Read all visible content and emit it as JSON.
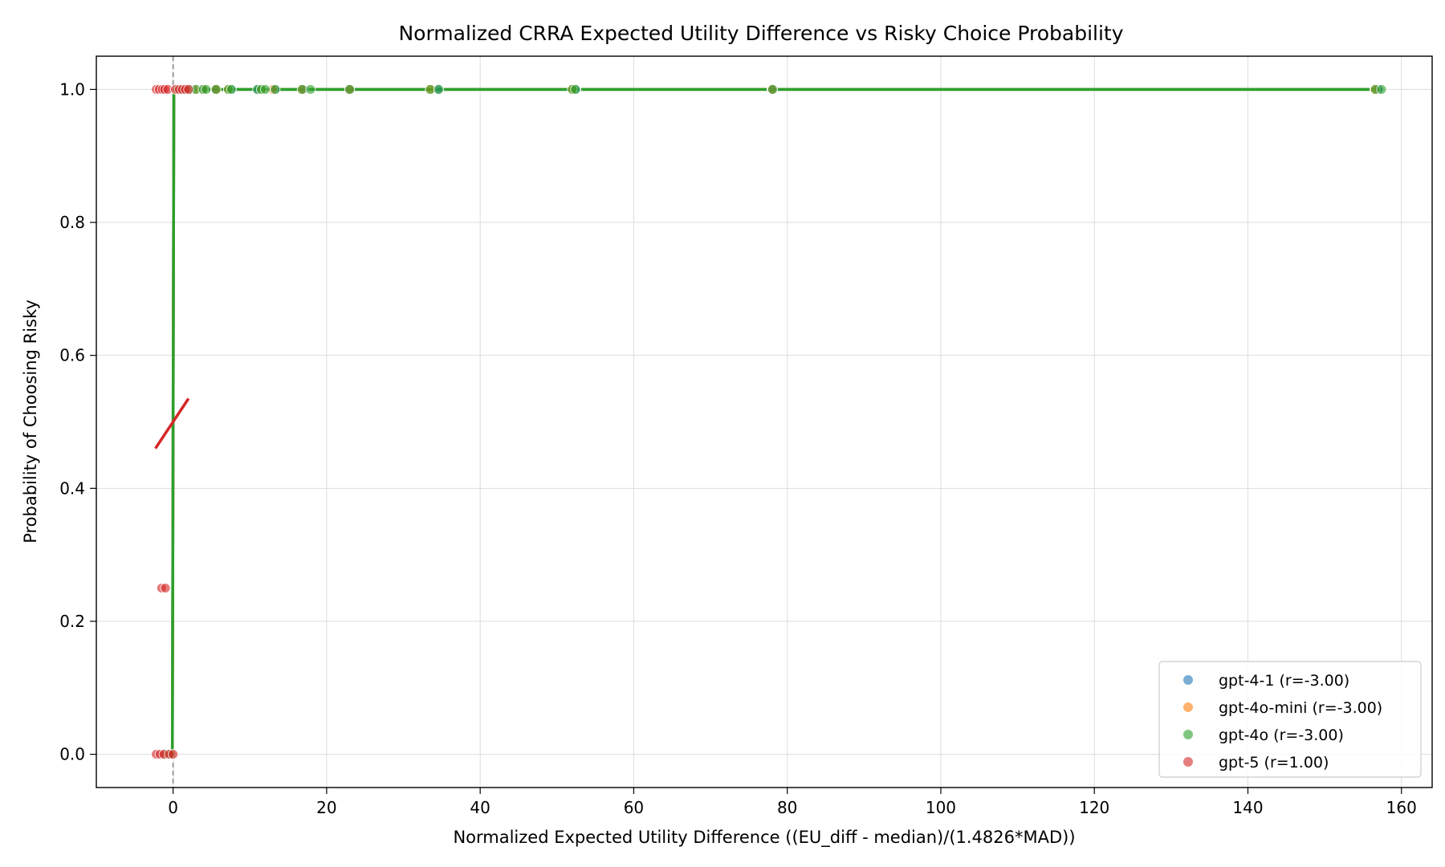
{
  "chart_data": {
    "type": "scatter",
    "title": "Normalized CRRA Expected Utility Difference vs Risky Choice Probability",
    "xlabel": "Normalized Expected Utility Difference ((EU_diff - median)/(1.4826*MAD))",
    "ylabel": "Probability of Choosing Risky",
    "xlim": [
      -10,
      164
    ],
    "ylim": [
      -0.05,
      1.05
    ],
    "xticks": [
      0,
      20,
      40,
      60,
      80,
      100,
      120,
      140,
      160
    ],
    "xtick_labels": [
      "0",
      "20",
      "40",
      "60",
      "80",
      "100",
      "120",
      "140",
      "160"
    ],
    "yticks": [
      0.0,
      0.2,
      0.4,
      0.6,
      0.8,
      1.0
    ],
    "ytick_labels": [
      "0.0",
      "0.2",
      "0.4",
      "0.6",
      "0.8",
      "1.0"
    ],
    "grid": true,
    "legend_position": "bottom-right",
    "reference_line": {
      "x": 0,
      "style": "dashed",
      "color": "#888888"
    },
    "series": [
      {
        "name": "gpt-4-1 (r=-3.00)",
        "color": "#1f77b4",
        "points": [
          [
            -0.5,
            0.0
          ],
          [
            0.4,
            1.0
          ],
          [
            1.2,
            1.0
          ],
          [
            2.5,
            1.0
          ],
          [
            3.8,
            1.0
          ],
          [
            5.5,
            1.0
          ],
          [
            7.5,
            1.0
          ],
          [
            11.0,
            1.0
          ],
          [
            13.3,
            1.0
          ],
          [
            17.0,
            1.0
          ],
          [
            23.0,
            1.0
          ],
          [
            34.5,
            1.0
          ],
          [
            52.5,
            1.0
          ],
          [
            78.0,
            1.0
          ],
          [
            157.0,
            1.0
          ]
        ],
        "fit_line": [
          [
            -0.4,
            0.0
          ],
          [
            -0.1,
            0.0
          ],
          [
            0.1,
            1.0
          ],
          [
            157.5,
            1.0
          ]
        ]
      },
      {
        "name": "gpt-4o-mini (r=-3.00)",
        "color": "#ff7f0e",
        "points": [
          [
            -0.6,
            0.0
          ],
          [
            0.5,
            1.0
          ],
          [
            1.5,
            1.0
          ],
          [
            2.8,
            1.0
          ],
          [
            4.0,
            1.0
          ],
          [
            5.6,
            1.0
          ],
          [
            7.2,
            1.0
          ],
          [
            11.5,
            1.0
          ],
          [
            13.0,
            1.0
          ],
          [
            16.8,
            1.0
          ],
          [
            23.0,
            1.0
          ],
          [
            33.5,
            1.0
          ],
          [
            52.0,
            1.0
          ],
          [
            78.0,
            1.0
          ],
          [
            156.5,
            1.0
          ]
        ],
        "fit_line": [
          [
            -0.4,
            0.0
          ],
          [
            -0.1,
            0.0
          ],
          [
            0.1,
            1.0
          ],
          [
            157.5,
            1.0
          ]
        ]
      },
      {
        "name": "gpt-4o (r=-3.00)",
        "color": "#2ca02c",
        "points": [
          [
            -1.0,
            0.0
          ],
          [
            -0.3,
            0.0
          ],
          [
            0.6,
            1.0
          ],
          [
            1.0,
            1.0
          ],
          [
            1.6,
            1.0
          ],
          [
            2.2,
            1.0
          ],
          [
            3.0,
            1.0
          ],
          [
            3.9,
            1.0
          ],
          [
            4.3,
            1.0
          ],
          [
            5.6,
            1.0
          ],
          [
            7.2,
            1.0
          ],
          [
            7.6,
            1.0
          ],
          [
            11.0,
            1.0
          ],
          [
            11.5,
            1.0
          ],
          [
            12.0,
            1.0
          ],
          [
            13.3,
            1.0
          ],
          [
            16.8,
            1.0
          ],
          [
            17.9,
            1.0
          ],
          [
            23.0,
            1.0
          ],
          [
            33.5,
            1.0
          ],
          [
            34.6,
            1.0
          ],
          [
            52.0,
            1.0
          ],
          [
            52.4,
            1.0
          ],
          [
            78.1,
            1.0
          ],
          [
            156.6,
            1.0
          ],
          [
            157.4,
            1.0
          ]
        ],
        "fit_line": [
          [
            -0.4,
            0.0
          ],
          [
            -0.1,
            0.0
          ],
          [
            0.1,
            1.0
          ],
          [
            157.5,
            1.0
          ]
        ]
      },
      {
        "name": "gpt-5 (r=1.00)",
        "color": "#d62728",
        "points": [
          [
            -2.2,
            1.0
          ],
          [
            -1.8,
            1.0
          ],
          [
            -1.4,
            1.0
          ],
          [
            -1.1,
            1.0
          ],
          [
            -0.7,
            1.0
          ],
          [
            0.3,
            1.0
          ],
          [
            0.8,
            1.0
          ],
          [
            1.2,
            1.0
          ],
          [
            1.6,
            1.0
          ],
          [
            2.0,
            1.0
          ],
          [
            -1.5,
            0.25
          ],
          [
            -1.0,
            0.25
          ],
          [
            -2.2,
            0.0
          ],
          [
            -1.7,
            0.0
          ],
          [
            -1.2,
            0.0
          ],
          [
            -0.5,
            0.0
          ],
          [
            0.0,
            0.0
          ]
        ],
        "fit_line": [
          [
            -2.3,
            0.46
          ],
          [
            2.0,
            0.535
          ]
        ]
      }
    ]
  }
}
